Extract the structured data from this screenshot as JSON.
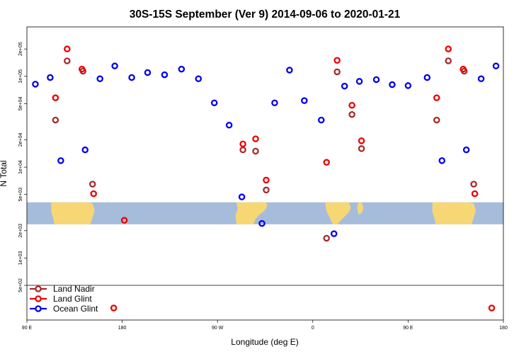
{
  "chart_data": {
    "type": "scatter",
    "title": "30S-15S September (Ver 9)   2014-09-06 to 2020-01-21",
    "xlabel": "Longitude (deg E)",
    "ylabel": "N Total",
    "y_scale": "log",
    "xlim": [
      90,
      540
    ],
    "ylim": [
      500,
      350000
    ],
    "x_ticks": [
      {
        "value": 90,
        "label": "90 E"
      },
      {
        "value": 180,
        "label": "180"
      },
      {
        "value": 270,
        "label": "90 W"
      },
      {
        "value": 360,
        "label": "0"
      },
      {
        "value": 450,
        "label": "90 E"
      },
      {
        "value": 540,
        "label": "180"
      }
    ],
    "y_ticks": [
      {
        "value": 200000,
        "label": "2e+05"
      },
      {
        "value": 100000,
        "label": "1e+05"
      },
      {
        "value": 50000,
        "label": "5e+04"
      },
      {
        "value": 20000,
        "label": "2e+04"
      },
      {
        "value": 10000,
        "label": "1e+04"
      },
      {
        "value": 5000,
        "label": "5e+03"
      },
      {
        "value": 2000,
        "label": "2e+03"
      },
      {
        "value": 1000,
        "label": "1e+03"
      },
      {
        "value": 500,
        "label": "5e+02"
      }
    ],
    "map_band": {
      "y_top": 4100,
      "y_bottom": 2350,
      "ocean_color": "#a6bcdb",
      "land_color": "#f7d774"
    },
    "below_axis_row_label": "",
    "series": [
      {
        "name": "Land Nadir",
        "color": "#a52a2a",
        "points": [
          {
            "x": 117,
            "y": 33000
          },
          {
            "x": 128,
            "y": 148000
          },
          {
            "x": 143,
            "y": 114000
          },
          {
            "x": 152,
            "y": 6500
          },
          {
            "x": 294,
            "y": 15500
          },
          {
            "x": 306,
            "y": 15000
          },
          {
            "x": 316,
            "y": 5600
          },
          {
            "x": 373,
            "y": 1650
          },
          {
            "x": 383,
            "y": 112000
          },
          {
            "x": 397,
            "y": 38000
          },
          {
            "x": 406,
            "y": 16000
          },
          {
            "x": 477,
            "y": 33000
          },
          {
            "x": 488,
            "y": 148000
          },
          {
            "x": 503,
            "y": 114000
          },
          {
            "x": 512,
            "y": 6500
          }
        ]
      },
      {
        "name": "Land Glint",
        "color": "#ee0000",
        "points": [
          {
            "x": 117,
            "y": 58000
          },
          {
            "x": 128,
            "y": 200000
          },
          {
            "x": 142,
            "y": 120000
          },
          {
            "x": 153,
            "y": 5100
          },
          {
            "x": 182,
            "y": 2600
          },
          {
            "x": 294,
            "y": 18000
          },
          {
            "x": 306,
            "y": 20500
          },
          {
            "x": 316,
            "y": 7200
          },
          {
            "x": 373,
            "y": 11300
          },
          {
            "x": 383,
            "y": 150000
          },
          {
            "x": 397,
            "y": 48000
          },
          {
            "x": 406,
            "y": 19500
          },
          {
            "x": 477,
            "y": 58000
          },
          {
            "x": 488,
            "y": 200000
          },
          {
            "x": 502,
            "y": 120000
          },
          {
            "x": 513,
            "y": 5100
          }
        ]
      },
      {
        "name": "Ocean Glint",
        "color": "#0000ee",
        "points": [
          {
            "x": 98,
            "y": 82000
          },
          {
            "x": 112,
            "y": 97000
          },
          {
            "x": 122,
            "y": 11800
          },
          {
            "x": 145,
            "y": 15500
          },
          {
            "x": 159,
            "y": 94000
          },
          {
            "x": 173,
            "y": 130000
          },
          {
            "x": 189,
            "y": 97000
          },
          {
            "x": 204,
            "y": 110000
          },
          {
            "x": 220,
            "y": 104000
          },
          {
            "x": 236,
            "y": 120000
          },
          {
            "x": 252,
            "y": 94000
          },
          {
            "x": 267,
            "y": 51000
          },
          {
            "x": 281,
            "y": 29000
          },
          {
            "x": 293,
            "y": 4700
          },
          {
            "x": 312,
            "y": 2400
          },
          {
            "x": 324,
            "y": 51000
          },
          {
            "x": 338,
            "y": 117000
          },
          {
            "x": 352,
            "y": 54000
          },
          {
            "x": 368,
            "y": 33000
          },
          {
            "x": 380,
            "y": 1850
          },
          {
            "x": 390,
            "y": 78000
          },
          {
            "x": 404,
            "y": 88000
          },
          {
            "x": 420,
            "y": 92000
          },
          {
            "x": 435,
            "y": 81000
          },
          {
            "x": 450,
            "y": 79000
          },
          {
            "x": 468,
            "y": 97000
          },
          {
            "x": 482,
            "y": 11800
          },
          {
            "x": 505,
            "y": 15500
          },
          {
            "x": 519,
            "y": 94000
          },
          {
            "x": 533,
            "y": 130000
          }
        ]
      }
    ],
    "below_axis_points": [
      {
        "series": "Land Glint",
        "x": 172
      },
      {
        "series": "Land Glint",
        "x": 529
      }
    ],
    "legend": {
      "position": "bottom-left",
      "entries": [
        {
          "label": "Land Nadir",
          "color": "#a52a2a"
        },
        {
          "label": "Land Glint",
          "color": "#ee0000"
        },
        {
          "label": "Ocean Glint",
          "color": "#0000ee"
        }
      ]
    }
  }
}
